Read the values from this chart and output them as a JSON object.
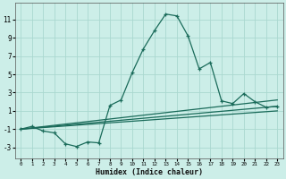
{
  "xlabel": "Humidex (Indice chaleur)",
  "bg_color": "#cceee8",
  "grid_color": "#aad8d0",
  "line_color": "#1a6b5a",
  "xlim": [
    -0.5,
    23.5
  ],
  "ylim": [
    -4.2,
    12.8
  ],
  "yticks": [
    -3,
    -1,
    1,
    3,
    5,
    7,
    9,
    11
  ],
  "xticks": [
    0,
    1,
    2,
    3,
    4,
    5,
    6,
    7,
    8,
    9,
    10,
    11,
    12,
    13,
    14,
    15,
    16,
    17,
    18,
    19,
    20,
    21,
    22,
    23
  ],
  "main_x": [
    0,
    1,
    2,
    3,
    4,
    5,
    6,
    7,
    8,
    9,
    10,
    11,
    12,
    13,
    14,
    15,
    16,
    17,
    18,
    19,
    20,
    21,
    22,
    23
  ],
  "main_y": [
    -1.0,
    -0.7,
    -1.2,
    -1.4,
    -2.6,
    -2.9,
    -2.4,
    -2.5,
    1.6,
    2.2,
    5.2,
    7.8,
    9.8,
    11.6,
    11.4,
    9.2,
    5.6,
    6.3,
    2.1,
    1.8,
    2.9,
    2.0,
    1.4,
    1.5
  ],
  "trend1_y0": -1.0,
  "trend1_y1": 1.0,
  "trend2_y0": -1.0,
  "trend2_y1": 1.5,
  "trend3_y0": -1.0,
  "trend3_y1": 2.2
}
